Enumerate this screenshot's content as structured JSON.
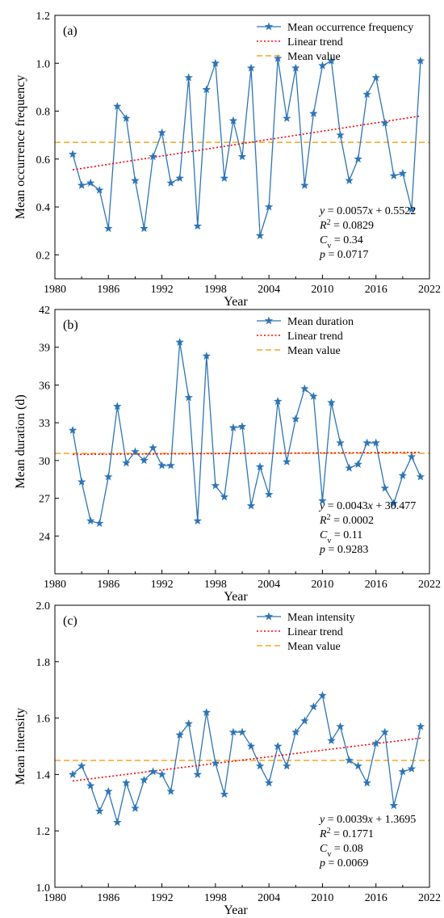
{
  "chart_data": [
    {
      "type": "line",
      "panel_label": "(a)",
      "xlabel": "Year",
      "ylabel": "Mean occurrence frequency",
      "xlim": [
        1980,
        2022
      ],
      "ylim": [
        0.1,
        1.2
      ],
      "xticks": [
        "1980",
        "1986",
        "1992",
        "1998",
        "2004",
        "2010",
        "2016",
        "2022"
      ],
      "yticks": [
        "0.2",
        "0.4",
        "0.6",
        "0.8",
        "1.0",
        "1.2"
      ],
      "legend_position": "top-right",
      "series": [
        {
          "name": "Mean occurrence frequency",
          "style": "line-with-star-markers",
          "color": "#2e75b6",
          "x": [
            1982,
            1983,
            1984,
            1985,
            1986,
            1987,
            1988,
            1989,
            1990,
            1991,
            1992,
            1993,
            1994,
            1995,
            1996,
            1997,
            1998,
            1999,
            2000,
            2001,
            2002,
            2003,
            2004,
            2005,
            2006,
            2007,
            2008,
            2009,
            2010,
            2011,
            2012,
            2013,
            2014,
            2015,
            2016,
            2017,
            2018,
            2019,
            2020,
            2021
          ],
          "values": [
            0.62,
            0.49,
            0.5,
            0.47,
            0.31,
            0.82,
            0.77,
            0.51,
            0.31,
            0.61,
            0.71,
            0.5,
            0.52,
            0.94,
            0.32,
            0.89,
            1.0,
            0.52,
            0.76,
            0.61,
            0.98,
            0.28,
            0.4,
            1.02,
            0.77,
            0.98,
            0.49,
            0.79,
            0.99,
            1.01,
            0.7,
            0.51,
            0.6,
            0.87,
            0.94,
            0.75,
            0.53,
            0.54,
            0.39,
            1.01
          ]
        },
        {
          "name": "Linear trend",
          "style": "dotted",
          "color": "#ff0000",
          "x": [
            1982,
            2021
          ],
          "values": [
            0.555,
            0.78
          ]
        },
        {
          "name": "Mean value",
          "style": "dashed",
          "color": "#f5a623",
          "x": [
            1980,
            2022
          ],
          "values": [
            0.67,
            0.67
          ]
        }
      ],
      "stats": {
        "equation_prefix": "y",
        "equation_rhs": " = 0.0057",
        "equation_var": "x",
        "equation_tail": " + 0.5522",
        "r2_sym": "R",
        "r2_sup": "2",
        "r2_val": " = 0.0829",
        "cv_sym": "C",
        "cv_sub": "v",
        "cv_val": " = 0.34",
        "p_sym": "p",
        "p_val": " = 0.0717"
      }
    },
    {
      "type": "line",
      "panel_label": "(b)",
      "xlabel": "Year",
      "ylabel": "Mean duration (d)",
      "xlim": [
        1980,
        2022
      ],
      "ylim": [
        21,
        42
      ],
      "xticks": [
        "1980",
        "1986",
        "1992",
        "1998",
        "2004",
        "2010",
        "2016",
        "2022"
      ],
      "yticks": [
        "24",
        "27",
        "30",
        "33",
        "36",
        "39",
        "42"
      ],
      "legend_position": "top-right",
      "series": [
        {
          "name": "Mean duration",
          "style": "line-with-star-markers",
          "color": "#2e75b6",
          "x": [
            1982,
            1983,
            1984,
            1985,
            1986,
            1987,
            1988,
            1989,
            1990,
            1991,
            1992,
            1993,
            1994,
            1995,
            1996,
            1997,
            1998,
            1999,
            2000,
            2001,
            2002,
            2003,
            2004,
            2005,
            2006,
            2007,
            2008,
            2009,
            2010,
            2011,
            2012,
            2013,
            2014,
            2015,
            2016,
            2017,
            2018,
            2019,
            2020,
            2021
          ],
          "values": [
            32.4,
            28.3,
            25.2,
            25.0,
            28.7,
            34.3,
            29.8,
            30.7,
            30.0,
            31.0,
            29.6,
            29.6,
            39.4,
            35.0,
            25.2,
            38.3,
            28.0,
            27.1,
            32.6,
            32.7,
            26.4,
            29.5,
            27.3,
            34.7,
            29.9,
            33.3,
            35.7,
            35.1,
            26.8,
            34.6,
            31.4,
            29.4,
            29.7,
            31.4,
            31.4,
            27.8,
            26.6,
            28.8,
            30.3,
            28.7
          ]
        },
        {
          "name": "Linear trend",
          "style": "dotted",
          "color": "#ff0000",
          "x": [
            1982,
            2021
          ],
          "values": [
            30.48,
            30.65
          ]
        },
        {
          "name": "Mean value",
          "style": "dashed",
          "color": "#f5a623",
          "x": [
            1980,
            2022
          ],
          "values": [
            30.57,
            30.57
          ]
        }
      ],
      "stats": {
        "equation_prefix": "y",
        "equation_rhs": " = 0.0043",
        "equation_var": "x",
        "equation_tail": " + 30.477",
        "r2_sym": "R",
        "r2_sup": "2",
        "r2_val": " = 0.0002",
        "cv_sym": "C",
        "cv_sub": "v",
        "cv_val": " = 0.11",
        "p_sym": "p",
        "p_val": " = 0.9283"
      }
    },
    {
      "type": "line",
      "panel_label": "(c)",
      "xlabel": "Year",
      "ylabel": "Mean intensity",
      "xlim": [
        1980,
        2022
      ],
      "ylim": [
        1.0,
        2.0
      ],
      "xticks": [
        "1980",
        "1986",
        "1992",
        "1998",
        "2004",
        "2010",
        "2016",
        "2022"
      ],
      "yticks": [
        "1.0",
        "1.2",
        "1.4",
        "1.6",
        "1.8",
        "2.0"
      ],
      "legend_position": "top-right",
      "series": [
        {
          "name": "Mean intensity",
          "style": "line-with-star-markers",
          "color": "#2e75b6",
          "x": [
            1982,
            1983,
            1984,
            1985,
            1986,
            1987,
            1988,
            1989,
            1990,
            1991,
            1992,
            1993,
            1994,
            1995,
            1996,
            1997,
            1998,
            1999,
            2000,
            2001,
            2002,
            2003,
            2004,
            2005,
            2006,
            2007,
            2008,
            2009,
            2010,
            2011,
            2012,
            2013,
            2014,
            2015,
            2016,
            2017,
            2018,
            2019,
            2020,
            2021
          ],
          "values": [
            1.4,
            1.43,
            1.36,
            1.27,
            1.34,
            1.23,
            1.37,
            1.28,
            1.38,
            1.41,
            1.4,
            1.34,
            1.54,
            1.58,
            1.4,
            1.62,
            1.44,
            1.33,
            1.55,
            1.55,
            1.5,
            1.43,
            1.37,
            1.5,
            1.43,
            1.55,
            1.59,
            1.64,
            1.68,
            1.52,
            1.57,
            1.45,
            1.43,
            1.37,
            1.51,
            1.55,
            1.29,
            1.41,
            1.42,
            1.57
          ]
        },
        {
          "name": "Linear trend",
          "style": "dotted",
          "color": "#ff0000",
          "x": [
            1982,
            2021
          ],
          "values": [
            1.377,
            1.529
          ]
        },
        {
          "name": "Mean value",
          "style": "dashed",
          "color": "#f5a623",
          "x": [
            1980,
            2022
          ],
          "values": [
            1.45,
            1.45
          ]
        }
      ],
      "stats": {
        "equation_prefix": "y",
        "equation_rhs": " = 0.0039",
        "equation_var": "x",
        "equation_tail": " + 1.3695",
        "r2_sym": "R",
        "r2_sup": "2",
        "r2_val": " = 0.1771",
        "cv_sym": "C",
        "cv_sub": "v",
        "cv_val": " = 0.08",
        "p_sym": "p",
        "p_val": " = 0.0069"
      }
    }
  ]
}
